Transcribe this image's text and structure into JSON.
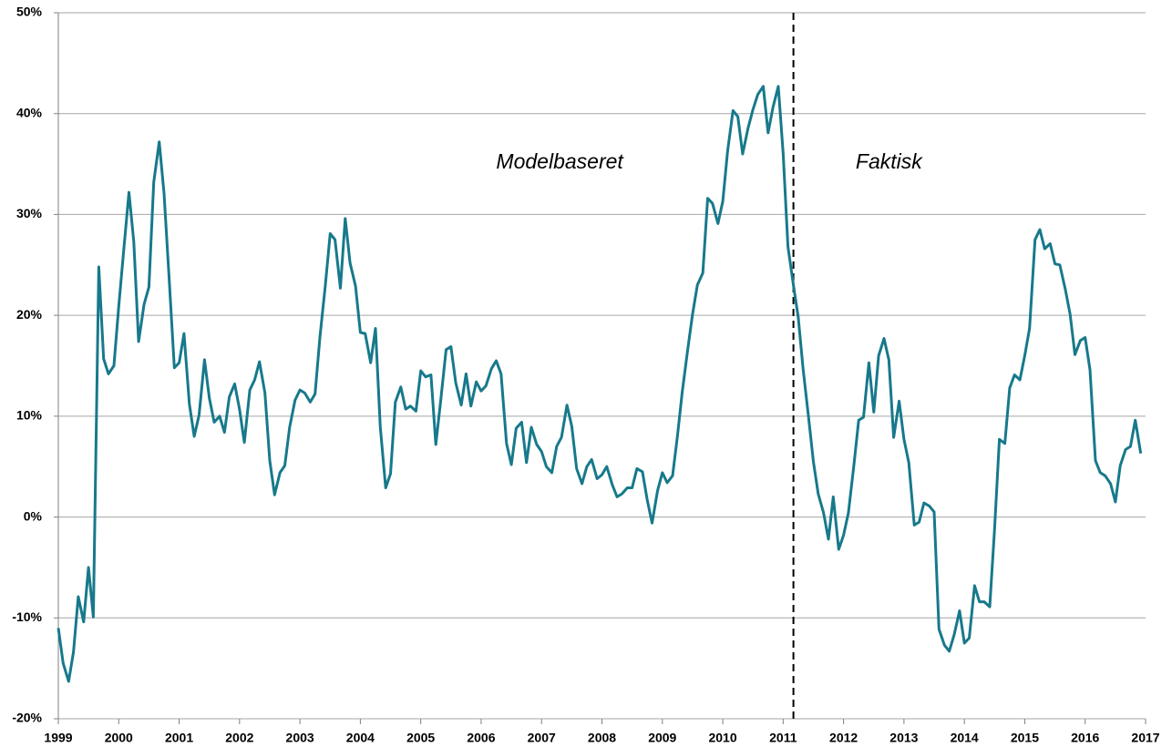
{
  "chart_data": {
    "type": "line",
    "x": [
      1999,
      1999.08,
      1999.17,
      1999.25,
      1999.33,
      1999.42,
      1999.5,
      1999.58,
      1999.67,
      1999.75,
      1999.83,
      1999.92,
      2000,
      2000.08,
      2000.17,
      2000.25,
      2000.33,
      2000.42,
      2000.5,
      2000.58,
      2000.67,
      2000.75,
      2000.83,
      2000.92,
      2001,
      2001.08,
      2001.17,
      2001.25,
      2001.33,
      2001.42,
      2001.5,
      2001.58,
      2001.67,
      2001.75,
      2001.83,
      2001.92,
      2002,
      2002.08,
      2002.17,
      2002.25,
      2002.33,
      2002.42,
      2002.5,
      2002.58,
      2002.67,
      2002.75,
      2002.83,
      2002.92,
      2003,
      2003.08,
      2003.17,
      2003.25,
      2003.33,
      2003.42,
      2003.5,
      2003.58,
      2003.67,
      2003.75,
      2003.83,
      2003.92,
      2004,
      2004.08,
      2004.17,
      2004.25,
      2004.33,
      2004.42,
      2004.5,
      2004.58,
      2004.67,
      2004.75,
      2004.83,
      2004.92,
      2005,
      2005.08,
      2005.17,
      2005.25,
      2005.33,
      2005.42,
      2005.5,
      2005.58,
      2005.67,
      2005.75,
      2005.83,
      2005.92,
      2006,
      2006.08,
      2006.17,
      2006.25,
      2006.33,
      2006.42,
      2006.5,
      2006.58,
      2006.67,
      2006.75,
      2006.83,
      2006.92,
      2007,
      2007.08,
      2007.17,
      2007.25,
      2007.33,
      2007.42,
      2007.5,
      2007.58,
      2007.67,
      2007.75,
      2007.83,
      2007.92,
      2008,
      2008.08,
      2008.17,
      2008.25,
      2008.33,
      2008.42,
      2008.5,
      2008.58,
      2008.67,
      2008.75,
      2008.83,
      2008.92,
      2009,
      2009.08,
      2009.17,
      2009.25,
      2009.33,
      2009.42,
      2009.5,
      2009.58,
      2009.67,
      2009.75,
      2009.83,
      2009.92,
      2010,
      2010.08,
      2010.17,
      2010.25,
      2010.33,
      2010.42,
      2010.5,
      2010.58,
      2010.67,
      2010.75,
      2010.83,
      2010.92,
      2011,
      2011.08,
      2011.17,
      2011.25,
      2011.33,
      2011.42,
      2011.5,
      2011.58,
      2011.67,
      2011.75,
      2011.83,
      2011.92,
      2012,
      2012.08,
      2012.17,
      2012.25,
      2012.33,
      2012.42,
      2012.5,
      2012.58,
      2012.67,
      2012.75,
      2012.83,
      2012.92,
      2013,
      2013.08,
      2013.17,
      2013.25,
      2013.33,
      2013.42,
      2013.5,
      2013.58,
      2013.67,
      2013.75,
      2013.83,
      2013.92,
      2014,
      2014.08,
      2014.17,
      2014.25,
      2014.33,
      2014.42,
      2014.5,
      2014.58,
      2014.67,
      2014.75,
      2014.83,
      2014.92,
      2015,
      2015.08,
      2015.17,
      2015.25,
      2015.33,
      2015.42,
      2015.5,
      2015.58,
      2015.67,
      2015.75,
      2015.83,
      2015.92,
      2016,
      2016.08,
      2016.17,
      2016.25,
      2016.33,
      2016.42,
      2016.5,
      2016.58,
      2016.67,
      2016.75,
      2016.83,
      2016.92
    ],
    "series": [
      {
        "color": "#17798b",
        "values": [
          -11.0,
          -14.5,
          -16.3,
          -13.4,
          -7.9,
          -10.4,
          -5.0,
          -9.9,
          24.8,
          15.7,
          14.2,
          15.0,
          20.9,
          26.3,
          32.2,
          27.3,
          17.4,
          21.1,
          22.8,
          33.2,
          37.2,
          32.1,
          24.1,
          14.8,
          15.3,
          18.2,
          11.2,
          8.0,
          10.1,
          15.6,
          11.8,
          9.4,
          10.0,
          8.4,
          11.9,
          13.2,
          10.7,
          7.4,
          12.6,
          13.6,
          15.4,
          12.3,
          5.6,
          2.2,
          4.4,
          5.1,
          8.9,
          11.6,
          12.6,
          12.3,
          11.4,
          12.2,
          17.8,
          22.9,
          28.1,
          27.5,
          22.7,
          29.6,
          25.2,
          22.9,
          18.3,
          18.2,
          15.3,
          18.7,
          8.9,
          2.9,
          4.3,
          11.4,
          12.9,
          10.7,
          11.0,
          10.5,
          14.5,
          13.9,
          14.1,
          7.2,
          11.5,
          16.6,
          16.9,
          13.3,
          11.1,
          14.2,
          11.0,
          13.4,
          12.5,
          13.0,
          14.7,
          15.5,
          14.2,
          7.3,
          5.2,
          8.8,
          9.4,
          5.4,
          8.9,
          7.2,
          6.5,
          5.0,
          4.4,
          7.0,
          7.9,
          11.1,
          9.0,
          4.8,
          3.3,
          5.0,
          5.7,
          3.8,
          4.2,
          5.0,
          3.2,
          2.0,
          2.3,
          2.9,
          2.9,
          4.8,
          4.5,
          1.7,
          -0.6,
          2.6,
          4.4,
          3.4,
          4.1,
          8.0,
          12.4,
          16.6,
          20.1,
          23.0,
          24.2,
          31.6,
          31.1,
          29.1,
          31.3,
          36.3,
          40.3,
          39.7,
          36.0,
          38.6,
          40.4,
          41.9,
          42.7,
          38.1,
          40.6,
          42.7,
          36.1,
          26.8,
          23.0,
          19.8,
          14.7,
          9.9,
          5.5,
          2.3,
          0.4,
          -2.2,
          2.0,
          -3.2,
          -1.8,
          0.4,
          5.1,
          9.6,
          9.9,
          15.3,
          10.4,
          16.0,
          17.7,
          15.6,
          7.9,
          11.5,
          7.7,
          5.4,
          -0.8,
          -0.5,
          1.4,
          1.1,
          0.5,
          -11.1,
          -12.7,
          -13.3,
          -11.7,
          -9.3,
          -12.5,
          -12.0,
          -6.8,
          -8.4,
          -8.4,
          -8.9,
          -1.2,
          7.7,
          7.3,
          12.8,
          14.1,
          13.6,
          16.0,
          18.7,
          27.5,
          28.5,
          26.6,
          27.1,
          25.1,
          25.0,
          22.6,
          20.1,
          16.1,
          17.5,
          17.8,
          14.6,
          5.6,
          4.4,
          4.1,
          3.3,
          1.5,
          5.1,
          6.7,
          7.0,
          9.6,
          6.3
        ]
      }
    ],
    "xlim": [
      1999,
      2017
    ],
    "xticks": [
      1999,
      2000,
      2001,
      2002,
      2003,
      2004,
      2005,
      2006,
      2007,
      2008,
      2009,
      2010,
      2011,
      2012,
      2013,
      2014,
      2015,
      2016,
      2017
    ],
    "ylim": [
      -20,
      50
    ],
    "yticks": [
      {
        "value": -20,
        "label": "-20%"
      },
      {
        "value": -10,
        "label": "-10%"
      },
      {
        "value": 0,
        "label": "0%"
      },
      {
        "value": 10,
        "label": "10%"
      },
      {
        "value": 20,
        "label": "20%"
      },
      {
        "value": 30,
        "label": "30%"
      },
      {
        "value": 40,
        "label": "40%"
      },
      {
        "value": 50,
        "label": "50%"
      }
    ],
    "grid": true,
    "vline": {
      "x": 2011.17,
      "style": "dashed"
    },
    "annotations": [
      {
        "text": "Modelbaseret",
        "x": 2007.3,
        "y": 35.1
      },
      {
        "text": "Faktisk",
        "x": 2012.75,
        "y": 35.1
      }
    ]
  }
}
